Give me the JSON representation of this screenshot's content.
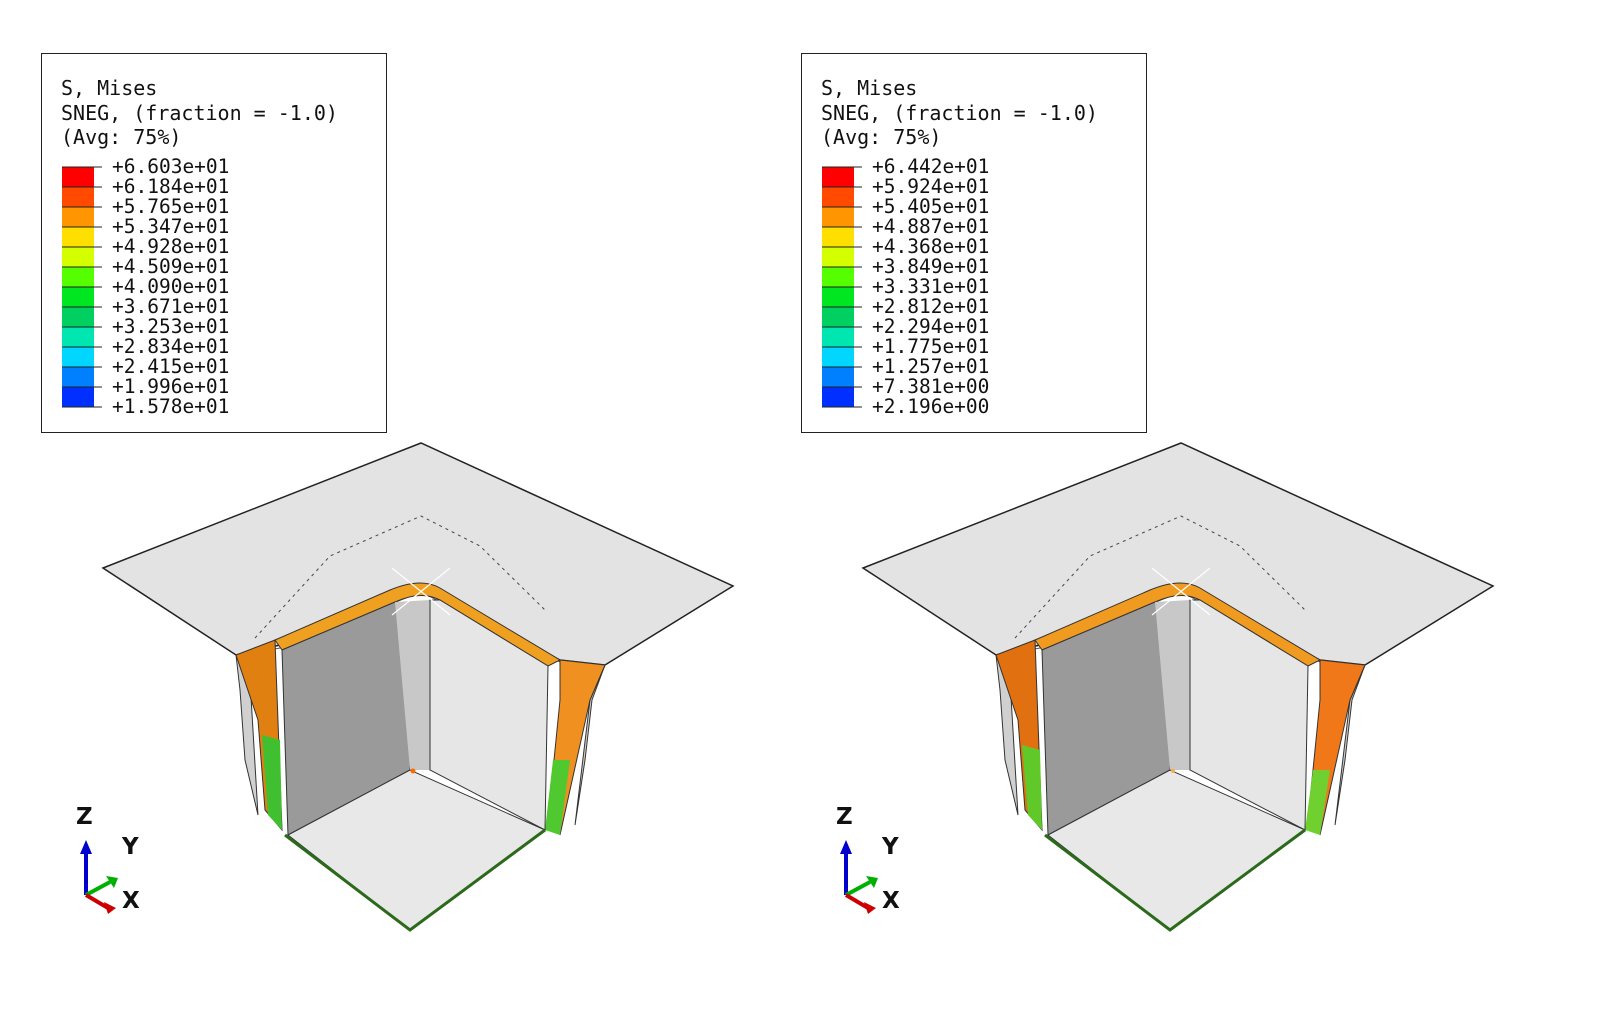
{
  "panels": [
    {
      "legend": {
        "title_line1": "S, Mises",
        "title_line2": "SNEG, (fraction = -1.0)",
        "title_line3": "(Avg: 75%)",
        "values": [
          "+6.603e+01",
          "+6.184e+01",
          "+5.765e+01",
          "+5.347e+01",
          "+4.928e+01",
          "+4.509e+01",
          "+4.090e+01",
          "+3.671e+01",
          "+3.253e+01",
          "+2.834e+01",
          "+2.415e+01",
          "+1.996e+01",
          "+1.578e+01"
        ]
      },
      "axes": {
        "z": "Z",
        "y": "Y",
        "x": "X"
      }
    },
    {
      "legend": {
        "title_line1": "S, Mises",
        "title_line2": "SNEG, (fraction = -1.0)",
        "title_line3": "(Avg: 75%)",
        "values": [
          "+6.442e+01",
          "+5.924e+01",
          "+5.405e+01",
          "+4.887e+01",
          "+4.368e+01",
          "+3.849e+01",
          "+3.331e+01",
          "+2.812e+01",
          "+2.294e+01",
          "+1.775e+01",
          "+1.257e+01",
          "+7.381e+00",
          "+2.196e+00"
        ]
      },
      "axes": {
        "z": "Z",
        "y": "Y",
        "x": "X"
      }
    }
  ],
  "colormap": [
    "#ff0000",
    "#ff4a00",
    "#ff9500",
    "#ffdf00",
    "#d4ff00",
    "#55ff00",
    "#00e620",
    "#00d060",
    "#00e6b0",
    "#00d6ff",
    "#0080ff",
    "#0030ff",
    "#0000ff"
  ]
}
